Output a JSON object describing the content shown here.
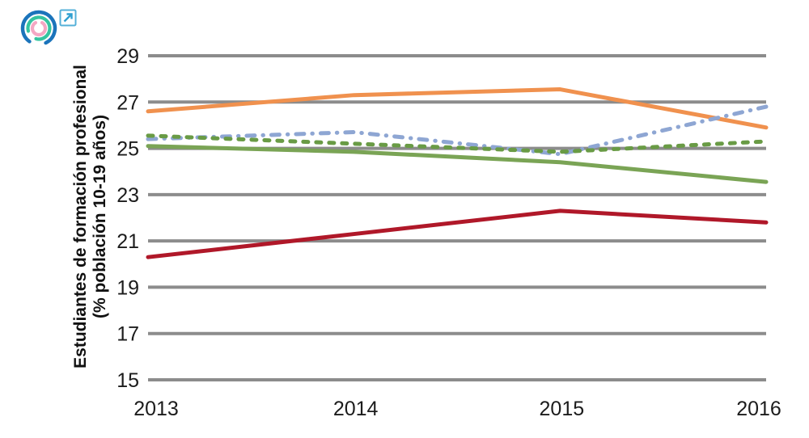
{
  "logo": {
    "name": "concentric-rings-logo",
    "external_link_label": "external-link"
  },
  "colors": {
    "gridline": "#8C8C8C",
    "tick_text": "#1c1c1c",
    "logo_outer_ring": "#1B74BB",
    "logo_middle_ring": "#35C4A0",
    "logo_inner_ring": "#F4A7C3",
    "external_link_icon": "#41A9D6"
  },
  "chart_data": {
    "type": "line",
    "title": "",
    "categories": [
      "2013",
      "2014",
      "2015",
      "2016"
    ],
    "series": [
      {
        "name": "orange-solid",
        "color": "#F0914E",
        "style": "solid",
        "values": [
          26.6,
          27.3,
          27.55,
          25.9
        ]
      },
      {
        "name": "blue-dash-dot",
        "color": "#8EA6D3",
        "style": "dash-dot",
        "values": [
          25.4,
          25.7,
          24.75,
          26.8
        ]
      },
      {
        "name": "green-dashed",
        "color": "#699B45",
        "style": "dashed",
        "values": [
          25.55,
          25.2,
          24.85,
          25.3
        ]
      },
      {
        "name": "green-solid",
        "color": "#7AA455",
        "style": "solid",
        "values": [
          25.1,
          24.85,
          24.4,
          23.55
        ]
      },
      {
        "name": "dark-red-solid",
        "color": "#B01829",
        "style": "solid",
        "values": [
          20.3,
          21.3,
          22.3,
          21.8
        ]
      }
    ],
    "ylabel_line1": "Estudiantes de formación profesional",
    "ylabel_line2": "(% población 10-19 años)",
    "xlabel": "",
    "yticks": [
      15,
      17,
      19,
      21,
      23,
      25,
      27,
      29
    ],
    "ylim": [
      15,
      29
    ],
    "grid": "horizontal-only",
    "legend": "none"
  }
}
